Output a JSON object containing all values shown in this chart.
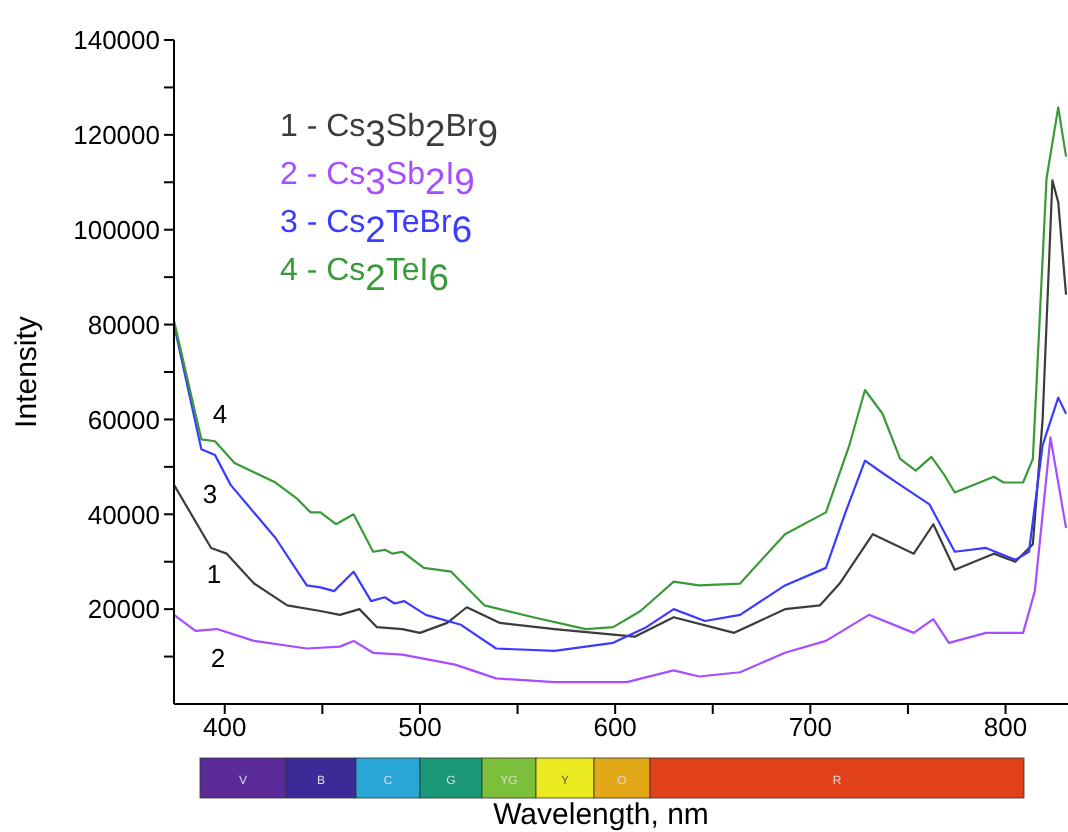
{
  "chart_data": {
    "type": "line",
    "xlabel": "Wavelength, nm",
    "ylabel": "Intensity",
    "xlim": [
      374,
      832
    ],
    "xticks": [
      400,
      {
        "value": 450,
        "label": null
      },
      500,
      {
        "value": 550,
        "label": null
      },
      600,
      {
        "value": 650,
        "label": null
      },
      700,
      {
        "value": 750,
        "label": null
      },
      800
    ],
    "ylim": [
      0,
      140000
    ],
    "yticks": [
      {
        "value": 10000,
        "label": null
      },
      20000,
      {
        "value": 30000,
        "label": null
      },
      40000,
      {
        "value": 50000,
        "label": null
      },
      60000,
      {
        "value": 70000,
        "label": null
      },
      80000,
      {
        "value": 90000,
        "label": null
      },
      100000,
      {
        "value": 110000,
        "label": null
      },
      120000,
      {
        "value": 130000,
        "label": null
      },
      140000
    ],
    "legend": "top left",
    "series": [
      {
        "name": "1 - Cs$_{3}$Sb$_{2}$Br$_{9}$",
        "color": "#3c3c3c",
        "x": [
          374,
          393,
          401,
          415,
          432,
          449,
          459,
          469,
          478,
          491,
          500,
          514,
          524,
          541,
          569,
          610,
          630,
          661,
          687,
          705,
          715,
          732,
          753,
          763,
          774,
          794,
          805,
          814,
          819,
          824,
          827,
          831
        ],
        "values": [
          46200,
          32900,
          31700,
          25400,
          20800,
          19600,
          18800,
          20000,
          16200,
          15800,
          15000,
          17100,
          20400,
          17100,
          15800,
          14200,
          18300,
          15000,
          20000,
          20800,
          25400,
          35800,
          31700,
          37900,
          28300,
          31700,
          30000,
          33700,
          60000,
          110400,
          105800,
          86300
        ]
      },
      {
        "name": "2 - Cs$_{3}$Sb$_{2}$I$_{9}$",
        "color": "#a64dff",
        "x": [
          374,
          385,
          396,
          415,
          442,
          459,
          466,
          476,
          491,
          518,
          539,
          569,
          606,
          630,
          643,
          664,
          687,
          708,
          730,
          753,
          763,
          771,
          790,
          809,
          815,
          823,
          831
        ],
        "values": [
          18800,
          15400,
          15800,
          13300,
          11700,
          12100,
          13300,
          10800,
          10400,
          8300,
          5400,
          4600,
          4600,
          7100,
          5800,
          6700,
          10800,
          13300,
          18800,
          15000,
          17900,
          12900,
          15000,
          15000,
          23800,
          56200,
          37100
        ]
      },
      {
        "name": "3 - Cs$_{2}$TeBr$_{6}$",
        "color": "#3b3bff",
        "x": [
          374,
          388,
          395,
          403,
          426,
          442,
          449,
          456,
          466,
          475,
          482,
          487,
          492,
          503,
          521,
          539,
          569,
          599,
          616,
          630,
          646,
          664,
          687,
          708,
          718,
          728,
          737,
          746,
          761,
          774,
          790,
          805,
          812,
          819,
          827,
          831
        ],
        "values": [
          80000,
          53700,
          52500,
          46200,
          35000,
          25000,
          24600,
          23800,
          27900,
          21700,
          22500,
          21200,
          21700,
          18800,
          16700,
          11700,
          11200,
          12900,
          16200,
          20000,
          17500,
          18800,
          25000,
          28700,
          40400,
          51300,
          48700,
          46200,
          42100,
          32100,
          32900,
          30400,
          32100,
          54600,
          64600,
          61200
        ]
      },
      {
        "name": "4 - Cs$_{2}$TeI$_{6}$",
        "color": "#3a9a3a",
        "x": [
          374,
          388,
          395,
          405,
          426,
          437,
          444,
          449,
          457,
          466,
          476,
          482,
          486,
          491,
          502,
          516,
          533,
          558,
          585,
          599,
          613,
          630,
          643,
          664,
          687,
          708,
          720,
          728,
          737,
          746,
          754,
          762,
          768,
          774,
          794,
          799,
          809,
          814,
          821,
          827,
          831
        ],
        "values": [
          80800,
          55800,
          55400,
          50800,
          46700,
          43300,
          40400,
          40400,
          37900,
          40000,
          32100,
          32500,
          31700,
          32100,
          28700,
          27900,
          20800,
          18300,
          15800,
          16200,
          19600,
          25800,
          25000,
          25400,
          35800,
          40400,
          54600,
          66200,
          61200,
          51700,
          49200,
          52100,
          48700,
          44600,
          47900,
          46700,
          46700,
          51700,
          110800,
          125800,
          115400
        ]
      }
    ],
    "annotations": [
      "4",
      "3",
      "1",
      "2",
      "V",
      "B",
      "C",
      "G",
      "YG",
      "Y",
      "O",
      "R"
    ]
  }
}
